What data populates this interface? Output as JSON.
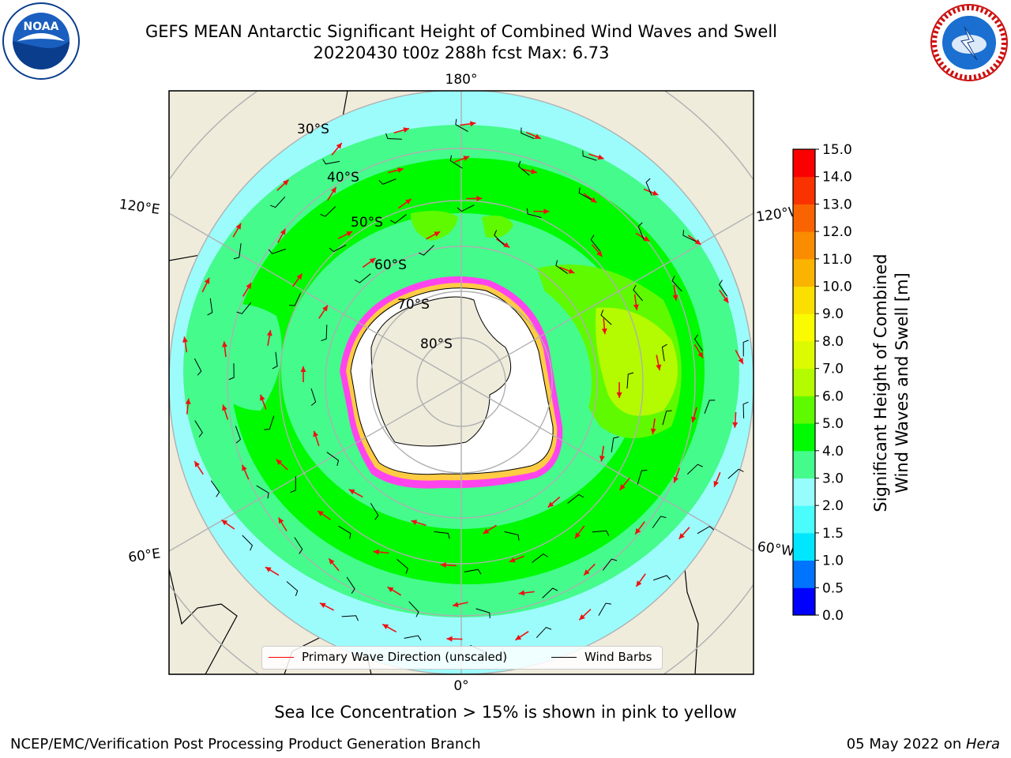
{
  "header": {
    "title_line1": "GEFS MEAN Antarctic Significant Height of Combined Wind Waves and Swell",
    "title_line2": "20220430 t00z 288h fcst   Max: 6.73"
  },
  "logos": {
    "left": "noaa-logo",
    "left_text": "NOAA",
    "right": "nws-logo",
    "right_text": "NATIONAL WEATHER SERVICE"
  },
  "map": {
    "projection": "south-polar-stereographic",
    "lat_labels": [
      "30°S",
      "40°S",
      "50°S",
      "60°S",
      "70°S",
      "80°S"
    ],
    "lon_labels": {
      "top": "180°",
      "bottom": "0°",
      "left_upper": "120°E",
      "left_lower": "60°E",
      "right_upper": "120°W",
      "right_lower": "60°W"
    },
    "colors": {
      "land": "#efecdc",
      "ocean_base": "#9cfcfc",
      "ice_shelf": "#ffffff",
      "sea_ice_pink": "#ff44ee",
      "sea_ice_yellow": "#ffcc44",
      "graticule": "#b0b0b0",
      "arrow": "#ee1111",
      "barb": "#000000"
    }
  },
  "legend": {
    "primary_wave": "Primary Wave Direction (unscaled)",
    "wind_barbs": "Wind Barbs",
    "primary_wave_color": "#ff0000",
    "wind_barbs_color": "#000000"
  },
  "colorbar": {
    "label_line1": "Significant Height of Combined",
    "label_line2": "Wind Waves and Swell [m]",
    "ticks": [
      "0.0",
      "0.5",
      "1.0",
      "1.5",
      "2.0",
      "3.0",
      "4.0",
      "5.0",
      "6.0",
      "7.0",
      "8.0",
      "9.0",
      "10.0",
      "11.0",
      "12.0",
      "13.0",
      "14.0",
      "15.0"
    ],
    "colors": [
      "#0000ff",
      "#0073ff",
      "#00e6ff",
      "#4afcfc",
      "#96fcfc",
      "#44fb8c",
      "#00fa00",
      "#5ffa00",
      "#b4fa00",
      "#dcfa00",
      "#fafa00",
      "#fadf00",
      "#fab400",
      "#fa8c00",
      "#fa6400",
      "#fa3200",
      "#fa0000"
    ]
  },
  "note": "Sea Ice Concentration > 15% is shown in pink to yellow",
  "footer": {
    "left": "NCEP/EMC/Verification Post Processing Product Generation Branch",
    "right_prefix": "05 May 2022 on ",
    "right_italic": "Hera"
  }
}
